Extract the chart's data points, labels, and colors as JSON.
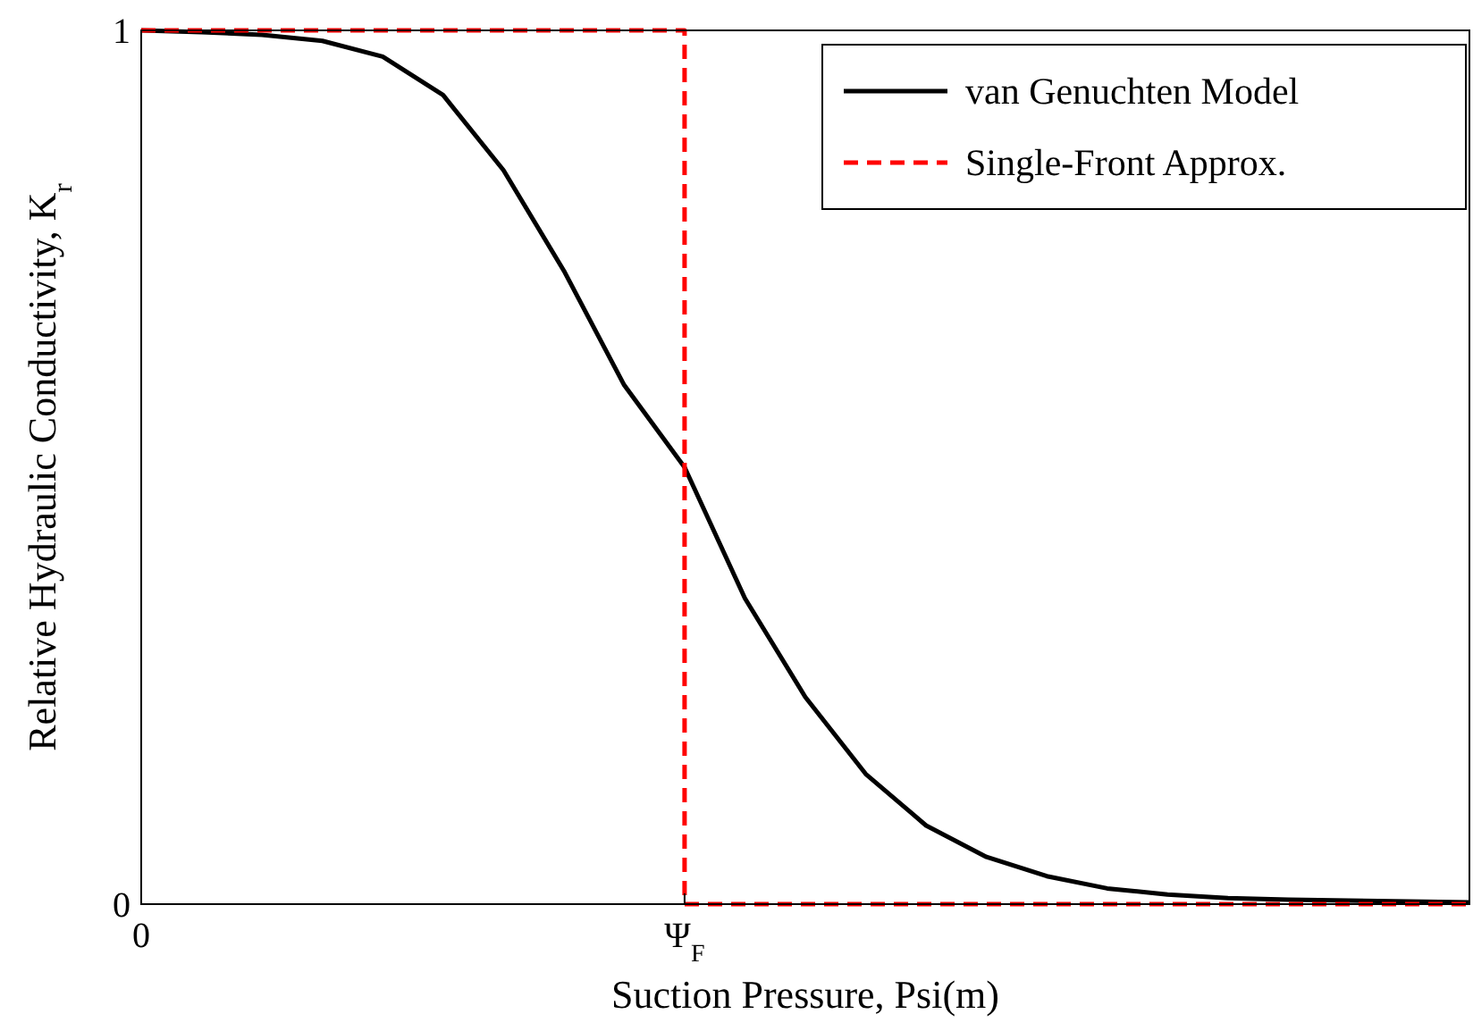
{
  "chart_data": {
    "type": "line",
    "xlabel": "Suction Pressure, Psi(m)",
    "ylabel": "Relative Hydraulic Conductivity, K$_{r}$",
    "categories": [
      "0",
      null,
      null,
      null,
      null,
      null,
      null,
      null,
      null,
      "Ψ$_{F}$",
      null,
      null,
      null,
      null,
      null,
      null,
      null,
      null,
      null,
      null,
      null,
      null,
      null
    ],
    "ylim": [
      0,
      1
    ],
    "yticks": [
      0,
      1
    ],
    "legend": "top right",
    "marker": "none",
    "series": [
      {
        "name": "van Genuchten Model",
        "color": "#000000",
        "line_style": "solid",
        "values": [
          1,
          0.998,
          0.995,
          0.988,
          0.97,
          0.926,
          0.84,
          0.725,
          0.594,
          0.5,
          0.35,
          0.237,
          0.149,
          0.09,
          0.054,
          0.032,
          0.018,
          0.011,
          0.007,
          0.005,
          0.004,
          0.003,
          0.002
        ]
      },
      {
        "name": "Single-Front Approx.",
        "type": "step",
        "color": "#ff0000",
        "line_style": "dashed",
        "values": [
          1,
          1,
          1,
          1,
          1,
          1,
          1,
          1,
          1,
          0,
          0,
          0,
          0,
          0,
          0,
          0,
          0,
          0,
          0,
          0,
          0,
          0,
          0
        ]
      }
    ]
  }
}
